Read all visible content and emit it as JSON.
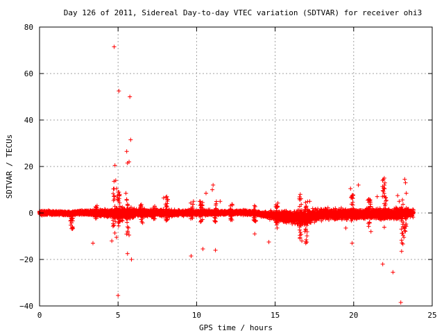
{
  "chart_data": {
    "type": "scatter",
    "title": "Day 126 of 2011, Sidereal Day-to-day VTEC variation (SDTVAR) for receiver ohi3",
    "xlabel": "GPS time / hours",
    "ylabel": "SDTVAR / TECUs",
    "xlim": [
      0,
      25
    ],
    "ylim": [
      -40,
      80
    ],
    "xticks": [
      "0",
      "5",
      "10",
      "15",
      "20",
      "25"
    ],
    "yticks": [
      "80",
      "60",
      "40",
      "20",
      "0",
      "−20",
      "−40"
    ],
    "grid": true,
    "marker": "plus",
    "color": "#ff0000",
    "band": [
      [
        0.0,
        -1.5,
        1.5
      ],
      [
        0.6,
        -1.0,
        1.2
      ],
      [
        1.0,
        -1.0,
        1.0
      ],
      [
        2.0,
        -1.5,
        1.0
      ],
      [
        3.0,
        -1.2,
        1.5
      ],
      [
        4.0,
        -1.8,
        1.8
      ],
      [
        4.6,
        -3.0,
        2.5
      ],
      [
        5.0,
        -4.0,
        3.5
      ],
      [
        5.5,
        -3.5,
        3.0
      ],
      [
        6.0,
        -2.5,
        2.5
      ],
      [
        7.0,
        -2.0,
        2.0
      ],
      [
        8.0,
        -2.0,
        2.0
      ],
      [
        9.0,
        -1.5,
        1.5
      ],
      [
        10.0,
        -1.5,
        1.8
      ],
      [
        11.0,
        -1.5,
        1.5
      ],
      [
        12.0,
        -1.0,
        1.2
      ],
      [
        13.0,
        -1.0,
        1.5
      ],
      [
        14.0,
        -1.5,
        0.8
      ],
      [
        15.0,
        -4.0,
        1.5
      ],
      [
        16.0,
        -5.5,
        2.0
      ],
      [
        17.0,
        -6.0,
        2.5
      ],
      [
        18.0,
        -3.5,
        2.5
      ],
      [
        19.0,
        -3.5,
        2.5
      ],
      [
        20.0,
        -3.5,
        2.5
      ],
      [
        21.0,
        -3.0,
        2.5
      ],
      [
        22.0,
        -4.0,
        3.0
      ],
      [
        23.0,
        -3.0,
        2.5
      ],
      [
        23.8,
        -2.0,
        2.0
      ]
    ],
    "spikes": [
      [
        2.05,
        -7.0,
        0.5
      ],
      [
        3.6,
        -3.0,
        3.5
      ],
      [
        4.75,
        -12.0,
        14.0
      ],
      [
        5.05,
        -6.0,
        9.0
      ],
      [
        5.6,
        -10.0,
        6.0
      ],
      [
        6.5,
        -5.0,
        4.0
      ],
      [
        7.3,
        -3.0,
        3.0
      ],
      [
        8.1,
        -5.0,
        7.0
      ],
      [
        9.7,
        -3.0,
        4.5
      ],
      [
        10.3,
        -4.0,
        5.0
      ],
      [
        11.2,
        -4.0,
        5.0
      ],
      [
        12.2,
        -3.5,
        4.0
      ],
      [
        13.7,
        -4.0,
        3.5
      ],
      [
        15.1,
        -7.0,
        5.0
      ],
      [
        16.6,
        -11.0,
        8.0
      ],
      [
        17.0,
        -13.0,
        5.0
      ],
      [
        19.9,
        -4.0,
        8.0
      ],
      [
        21.0,
        -6.0,
        6.0
      ],
      [
        21.9,
        -12.0,
        15.0
      ],
      [
        22.0,
        -4.0,
        14.0
      ],
      [
        23.1,
        -16.0,
        6.0
      ],
      [
        23.3,
        -8.0,
        3.0
      ]
    ],
    "outliers": [
      [
        0.1,
        0.6
      ],
      [
        0.3,
        -0.2
      ],
      [
        2.1,
        -6.0
      ],
      [
        3.4,
        -13.0
      ],
      [
        4.75,
        71.5
      ],
      [
        4.8,
        20.5
      ],
      [
        4.85,
        14.0
      ],
      [
        4.9,
        10.5
      ],
      [
        4.9,
        -10.5
      ],
      [
        4.95,
        7.5
      ],
      [
        5.05,
        52.5
      ],
      [
        5.0,
        -35.5
      ],
      [
        5.0,
        9.0
      ],
      [
        4.6,
        -12.0
      ],
      [
        5.55,
        26.5
      ],
      [
        5.6,
        21.5
      ],
      [
        5.7,
        22.0
      ],
      [
        5.7,
        -9.5
      ],
      [
        5.75,
        50.0
      ],
      [
        5.8,
        31.5
      ],
      [
        5.85,
        -20.0
      ],
      [
        5.6,
        -17.5
      ],
      [
        5.5,
        8.5
      ],
      [
        5.55,
        5.5
      ],
      [
        7.9,
        6.5
      ],
      [
        8.1,
        7.0
      ],
      [
        9.65,
        -18.5
      ],
      [
        9.8,
        5.0
      ],
      [
        10.2,
        5.0
      ],
      [
        10.4,
        -15.5
      ],
      [
        10.6,
        8.5
      ],
      [
        11.0,
        10.0
      ],
      [
        11.05,
        12.0
      ],
      [
        11.2,
        -16.0
      ],
      [
        11.5,
        5.0
      ],
      [
        13.7,
        -9.0
      ],
      [
        14.6,
        -12.5
      ],
      [
        15.05,
        3.5
      ],
      [
        16.6,
        8.0
      ],
      [
        16.7,
        -12.0
      ],
      [
        16.9,
        -8.0
      ],
      [
        16.95,
        -13.0
      ],
      [
        17.2,
        5.0
      ],
      [
        19.5,
        -6.5
      ],
      [
        19.8,
        10.5
      ],
      [
        19.9,
        -13.0
      ],
      [
        20.3,
        12.0
      ],
      [
        20.9,
        5.5
      ],
      [
        21.1,
        -8.0
      ],
      [
        21.5,
        7.0
      ],
      [
        21.85,
        -22.0
      ],
      [
        21.95,
        15.0
      ],
      [
        22.5,
        -25.5
      ],
      [
        22.8,
        7.5
      ],
      [
        23.0,
        -38.5
      ],
      [
        23.05,
        -16.5
      ],
      [
        23.2,
        -10.5
      ],
      [
        23.25,
        14.5
      ],
      [
        23.3,
        13.0
      ],
      [
        23.35,
        8.5
      ],
      [
        22.9,
        5.0
      ]
    ]
  }
}
